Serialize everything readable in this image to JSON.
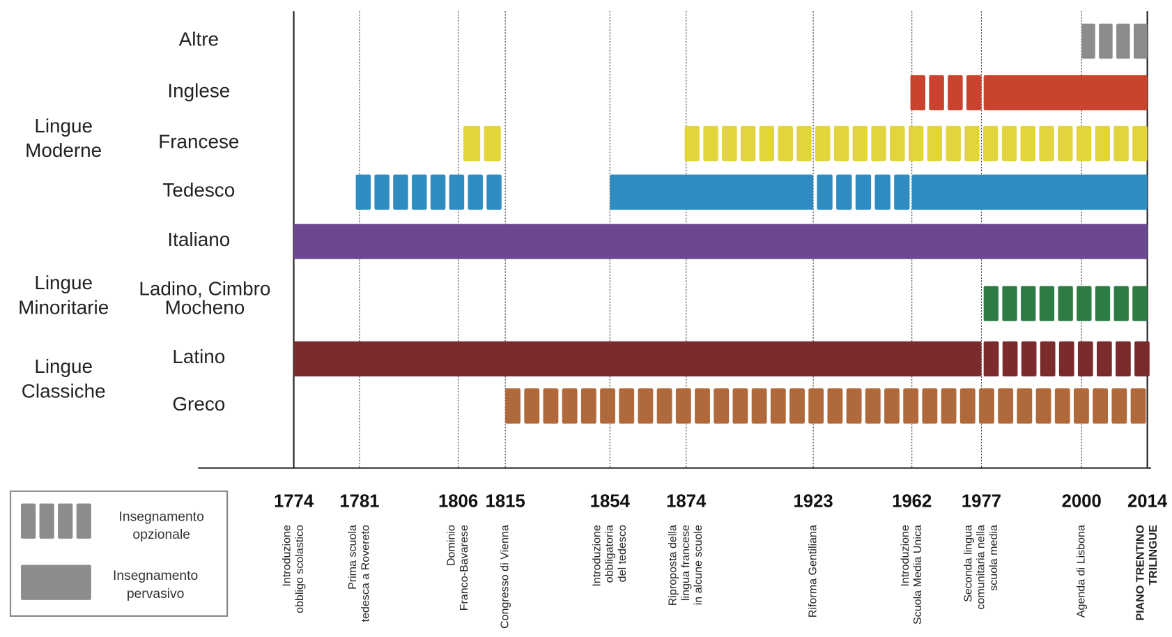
{
  "rows": [
    {
      "label": [
        "Altre"
      ]
    },
    {
      "label": [
        "Inglese"
      ]
    },
    {
      "label": [
        "Francese"
      ]
    },
    {
      "label": [
        "Tedesco"
      ]
    },
    {
      "label": [
        "Italiano"
      ]
    },
    {
      "label": [
        "Ladino, Cimbro",
        "Mocheno"
      ]
    },
    {
      "label": [
        "Latino"
      ]
    },
    {
      "label": [
        "Greco"
      ]
    }
  ],
  "groups": [
    {
      "label": [
        "Lingue",
        "Moderne"
      ]
    },
    {
      "label": [
        "Lingue",
        "Minoritarie"
      ]
    },
    {
      "label": [
        "Lingue",
        "Classiche"
      ]
    }
  ],
  "events": [
    {
      "year": "1774",
      "text": [
        "Introduzione",
        "obbligo scolastico"
      ]
    },
    {
      "year": "1781",
      "text": [
        "Prima scuola",
        "tedesca a Rovereto"
      ]
    },
    {
      "year": "1806",
      "text": [
        "Dominio",
        "Franco-Bavarese"
      ]
    },
    {
      "year": "1815",
      "text": [
        "Congresso di Vienna"
      ]
    },
    {
      "year": "1854",
      "text": [
        "Introduzione",
        "obbligatoria",
        "del tedesco"
      ]
    },
    {
      "year": "1874",
      "text": [
        "Riproposta della",
        "lingua francese",
        "in alcune scuole"
      ]
    },
    {
      "year": "1923",
      "text": [
        "Riforma Gentiliana"
      ]
    },
    {
      "year": "1962",
      "text": [
        "Introduzione",
        "Scuola Media Unica"
      ]
    },
    {
      "year": "1977",
      "text": [
        "Seconda lingua",
        "comunitaria nella",
        "scuola media"
      ]
    },
    {
      "year": "2000",
      "text": [
        "Agenda di Lisbona"
      ]
    },
    {
      "year": "2014",
      "text": [
        "PIANO TRENTINO",
        "TRILINGUE"
      ]
    }
  ],
  "legend": [
    {
      "label": [
        "Insegnamento",
        "opzionale"
      ]
    },
    {
      "label": [
        "Insegnamento",
        "pervasivo"
      ]
    }
  ]
}
